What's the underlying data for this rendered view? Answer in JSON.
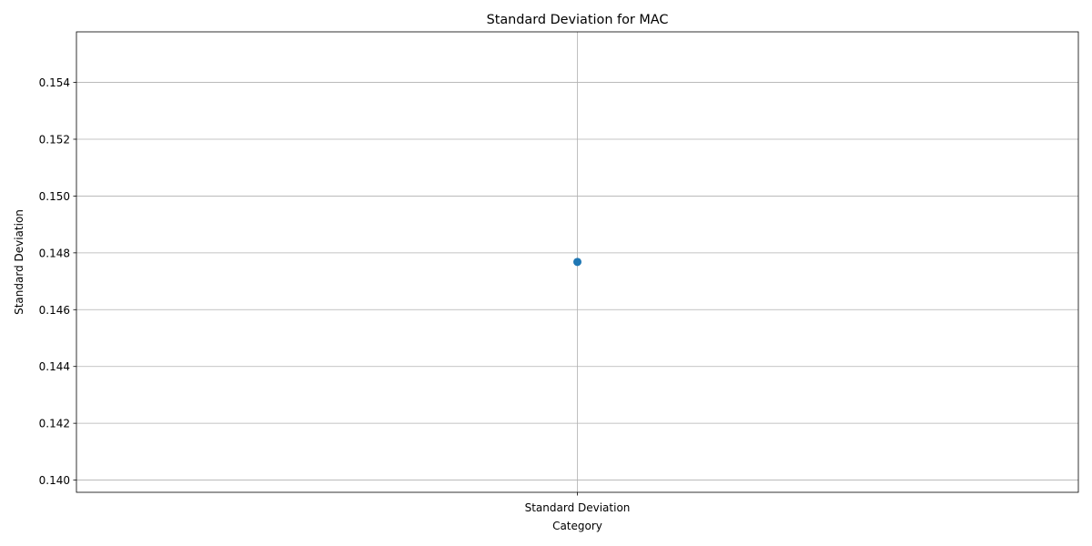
{
  "chart_data": {
    "type": "line",
    "title": "Standard Deviation for MAC",
    "xlabel": "Category",
    "ylabel": "Standard Deviation",
    "categories": [
      "Standard Deviation"
    ],
    "series": [
      {
        "values": [
          0.14768
        ]
      }
    ],
    "ylim": [
      0.13957,
      0.15578
    ],
    "yticks": [
      0.14,
      0.142,
      0.144,
      0.146,
      0.148,
      0.15,
      0.152,
      0.154
    ],
    "ytick_labels": [
      "0.140",
      "0.142",
      "0.144",
      "0.146",
      "0.148",
      "0.150",
      "0.152",
      "0.154"
    ],
    "grid": true,
    "marker": "circle",
    "colors": {
      "series": "#1f77b4",
      "grid": "#b0b0b0"
    }
  }
}
